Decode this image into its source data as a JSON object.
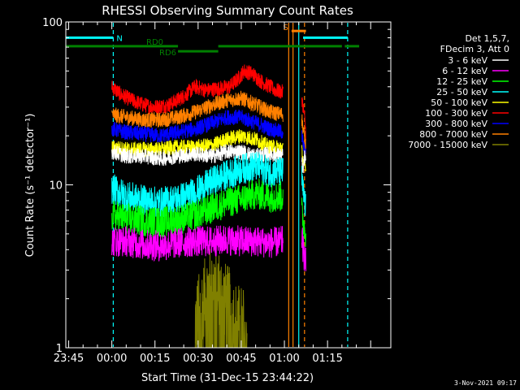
{
  "chart_data": {
    "type": "line",
    "title": "RHESSI Observing Summary Count Rates",
    "xlabel": "Start Time (31-Dec-15 23:44:22)",
    "ylabel": "Count Rate (s⁻¹ detector⁻¹)",
    "yscale": "log",
    "ylim": [
      1,
      100
    ],
    "xlim_minutes": [
      -1,
      112
    ],
    "x_ticks": [
      {
        "label": "23:45",
        "minute": 0
      },
      {
        "label": "00:00",
        "minute": 15
      },
      {
        "label": "00:15",
        "minute": 30
      },
      {
        "label": "00:30",
        "minute": 45
      },
      {
        "label": "00:45",
        "minute": 60
      },
      {
        "label": "01:00",
        "minute": 75
      },
      {
        "label": "01:15",
        "minute": 90
      }
    ],
    "y_ticks": [
      {
        "label": "1",
        "value": 1
      },
      {
        "label": "10",
        "value": 10
      },
      {
        "label": "100",
        "value": 100
      }
    ],
    "legend_header": [
      "Det 1,5,7,",
      "FDecim 3, Att 0"
    ],
    "legend_position": "right",
    "series": [
      {
        "name": "3 - 6 keV",
        "color": "#ffffff",
        "segments": [
          {
            "x": [
              15,
              20,
              26,
              32,
              38,
              44,
              50,
              55,
              60,
              65,
              70,
              74.5
            ],
            "y": [
              16,
              15,
              15,
              14.5,
              15,
              15.5,
              15,
              16,
              16,
              15,
              15.5,
              15
            ]
          },
          {
            "x": [
              81,
              81.5,
              82,
              82.5
            ],
            "y": [
              14,
              12,
              15,
              13
            ]
          }
        ]
      },
      {
        "name": "6 - 12 keV",
        "color": "#ff00ff",
        "segments": [
          {
            "x": [
              15,
              20,
              26,
              32,
              38,
              44,
              50,
              55,
              60,
              65,
              70,
              74.5
            ],
            "y": [
              4.5,
              4.5,
              4.3,
              4.2,
              4.4,
              4.5,
              4.5,
              4.6,
              4.5,
              4.5,
              4.4,
              4.5
            ]
          },
          {
            "x": [
              81,
              81.5,
              82,
              82.5
            ],
            "y": [
              5,
              4,
              3.6,
              3.3
            ]
          }
        ]
      },
      {
        "name": "12 - 25 keV",
        "color": "#00ff00",
        "segments": [
          {
            "x": [
              15,
              20,
              26,
              32,
              38,
              44,
              50,
              55,
              60,
              65,
              70,
              74.5
            ],
            "y": [
              6.5,
              6.2,
              6,
              5.9,
              6.1,
              6.5,
              7.2,
              7.8,
              8.2,
              8.8,
              8.4,
              8.5
            ]
          },
          {
            "x": [
              81,
              81.5,
              82,
              82.5
            ],
            "y": [
              7,
              6,
              5.5,
              5
            ]
          }
        ]
      },
      {
        "name": "25 - 50 keV",
        "color": "#00ffff",
        "segments": [
          {
            "x": [
              15,
              20,
              26,
              32,
              38,
              44,
              50,
              55,
              60,
              65,
              70,
              74.5
            ],
            "y": [
              9.5,
              8.5,
              8,
              7.8,
              8.2,
              9,
              10.5,
              11.5,
              12.5,
              13,
              12,
              12
            ]
          },
          {
            "x": [
              81,
              81.5,
              82,
              82.5
            ],
            "y": [
              11,
              9,
              8,
              7
            ]
          }
        ]
      },
      {
        "name": "50 - 100 keV",
        "color": "#ffff00",
        "segments": [
          {
            "x": [
              15,
              20,
              26,
              32,
              38,
              44,
              50,
              55,
              60,
              65,
              70,
              74.5
            ],
            "y": [
              17,
              16.5,
              16.5,
              16.5,
              17,
              17,
              17.5,
              19,
              20,
              19,
              17,
              17
            ]
          },
          {
            "x": [
              81,
              81.5,
              82,
              82.5
            ],
            "y": [
              16,
              14,
              13,
              12
            ]
          }
        ]
      },
      {
        "name": "100 - 300 keV",
        "color": "#ff0000",
        "segments": [
          {
            "x": [
              15,
              18,
              22,
              26,
              30,
              35,
              40,
              44,
              48,
              52,
              56,
              59,
              61,
              64,
              67,
              70,
              72,
              74.5
            ],
            "y": [
              40,
              36,
              33,
              31,
              30,
              31,
              35,
              40,
              38,
              39,
              40,
              45,
              50,
              48,
              43,
              40,
              38,
              37
            ]
          },
          {
            "x": [
              81,
              81.5,
              82,
              82.5
            ],
            "y": [
              35,
              30,
              26,
              20
            ]
          }
        ]
      },
      {
        "name": "300 - 800 keV",
        "color": "#0000ff",
        "segments": [
          {
            "x": [
              15,
              20,
              26,
              32,
              38,
              44,
              50,
              55,
              60,
              65,
              70,
              74.5
            ],
            "y": [
              22,
              21,
              20.5,
              20,
              21,
              22,
              24,
              26,
              26,
              24,
              22,
              21
            ]
          },
          {
            "x": [
              81,
              81.5,
              82,
              82.5
            ],
            "y": [
              20,
              18,
              16,
              15
            ]
          }
        ]
      },
      {
        "name": "800 - 7000 keV",
        "color": "#ff8000",
        "segments": [
          {
            "x": [
              15,
              20,
              26,
              32,
              38,
              44,
              50,
              55,
              60,
              65,
              70,
              74.5
            ],
            "y": [
              27,
              26,
              25,
              25,
              26,
              28,
              31,
              33,
              34,
              31,
              28,
              27
            ]
          },
          {
            "x": [
              81,
              81.5,
              82,
              82.5
            ],
            "y": [
              26,
              22,
              20,
              17
            ]
          }
        ]
      },
      {
        "name": "7000 - 15000 keV",
        "color": "#808000",
        "segments": [
          {
            "x": [
              44,
              46,
              48,
              50,
              52,
              54,
              56,
              58,
              60,
              62
            ],
            "y": [
              1.5,
              1.8,
              2.2,
              2.6,
              2.4,
              2,
              1.8,
              1.5,
              1.4,
              1.3
            ]
          }
        ]
      }
    ],
    "annotations": [
      {
        "label": "N",
        "color": "#00ffff",
        "x": [
          -1,
          15.5
        ],
        "y": 80
      },
      {
        "label": "",
        "color": "#00ffff",
        "x": [
          81.5,
          97
        ],
        "y": 80
      },
      {
        "label": "RD0",
        "color": "#008000",
        "x": [
          -1,
          38
        ],
        "y": 71
      },
      {
        "label": "",
        "color": "#008000",
        "x": [
          52,
          95
        ],
        "y": 71
      },
      {
        "label": "",
        "color": "#008000",
        "x": [
          96,
          101
        ],
        "y": 71
      },
      {
        "label": "RD6",
        "color": "#008000",
        "x": [
          38,
          52
        ],
        "y": 66
      },
      {
        "label": "S",
        "color": "#ff8000",
        "x": [
          77.5,
          82.5
        ],
        "y": 88
      }
    ],
    "vertical_lines": [
      {
        "color": "#00ffff",
        "style": "dashed",
        "x": 15.5
      },
      {
        "color": "#00ffff",
        "style": "solid",
        "x": 80
      },
      {
        "color": "#00ffff",
        "style": "dashed",
        "x": 97
      },
      {
        "color": "#ff8000",
        "style": "solid",
        "x": 76.5
      },
      {
        "color": "#ff8000",
        "style": "solid",
        "x": 78
      },
      {
        "color": "#ff8000",
        "style": "dashed",
        "x": 82
      }
    ]
  },
  "footer_date": "3-Nov-2021 09:17"
}
